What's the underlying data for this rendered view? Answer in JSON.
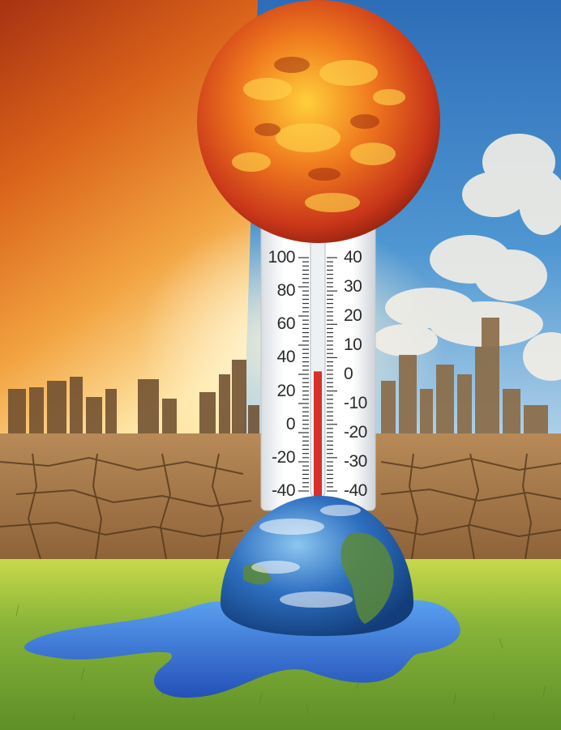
{
  "scene": {
    "subject": "global warming",
    "sky_left_color": "#d9621a",
    "sky_right_color": "#3f86c8",
    "sun_color": "#e8581a",
    "ground_color": "#7da83a",
    "water_color": "#2f6fd6",
    "mercury_color": "#d8302a"
  },
  "thermometer": {
    "left_labels": [
      "100",
      "80",
      "60",
      "40",
      "20",
      "0",
      "-20",
      "-40"
    ],
    "right_labels": [
      "40",
      "30",
      "20",
      "10",
      "0",
      "-10",
      "-20",
      "-30",
      "-40"
    ],
    "mercury_level_celsius": 1
  }
}
